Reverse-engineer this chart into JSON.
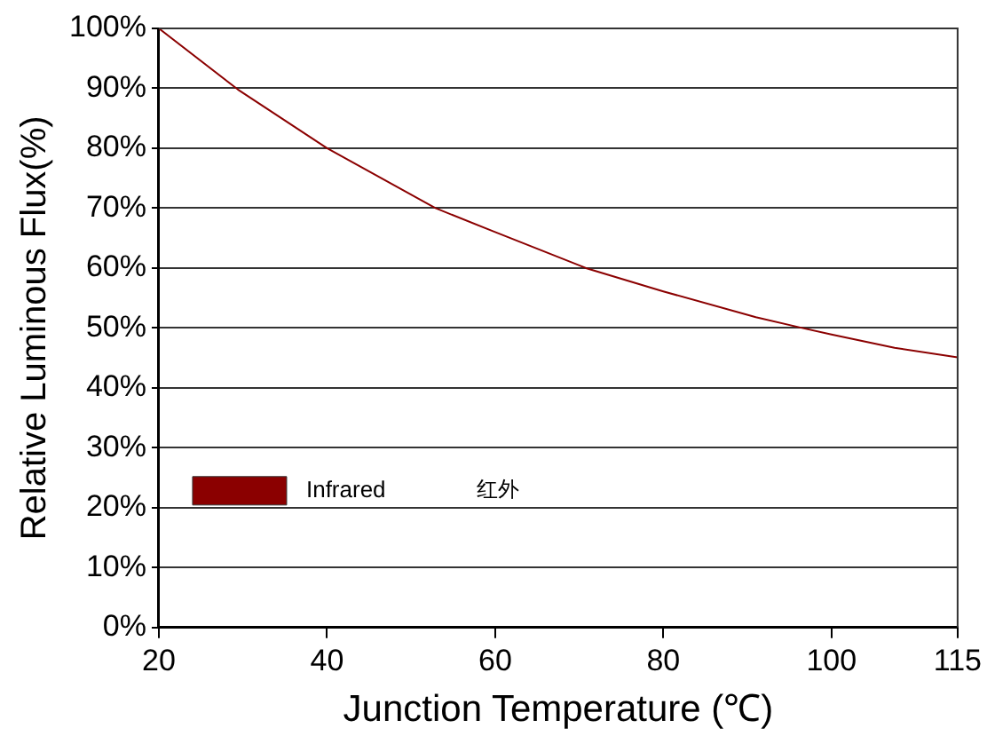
{
  "chart_data": {
    "type": "line",
    "xlabel": "Junction Temperature (℃)",
    "ylabel": "Relative Luminous Flux(%)",
    "xlim": [
      20,
      115
    ],
    "xticks": [
      20,
      40,
      60,
      80,
      100,
      115
    ],
    "ylim": [
      0,
      100
    ],
    "yticks": [
      {
        "value": 0,
        "label": "0%"
      },
      {
        "value": 10,
        "label": "10%"
      },
      {
        "value": 20,
        "label": "20%"
      },
      {
        "value": 30,
        "label": "30%"
      },
      {
        "value": 40,
        "label": "40%"
      },
      {
        "value": 50,
        "label": "50%"
      },
      {
        "value": 60,
        "label": "60%"
      },
      {
        "value": 70,
        "label": "70%"
      },
      {
        "value": 80,
        "label": "80%"
      },
      {
        "value": 90,
        "label": "90%"
      },
      {
        "value": 100,
        "label": "100%"
      }
    ],
    "grid": "y",
    "legend": "bottom left",
    "marker": "none",
    "line_style": "solid",
    "annotations": [
      "红外"
    ],
    "series": [
      {
        "name": "Infrared",
        "color": "#8b0000",
        "x": [
          20,
          29.4,
          40,
          52.9,
          60,
          70.8,
          80,
          91,
          96.5,
          100,
          107.5,
          115
        ],
        "values": [
          100,
          89.8,
          80,
          70,
          66,
          60,
          56.1,
          51.8,
          50,
          48.9,
          46.7,
          45.1
        ]
      }
    ]
  }
}
